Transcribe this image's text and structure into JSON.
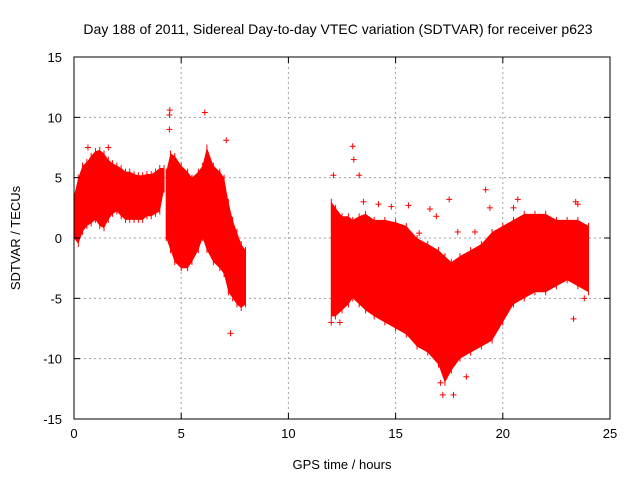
{
  "chart_data": {
    "type": "scatter",
    "title": "Day 188 of 2011, Sidereal Day-to-day VTEC variation (SDTVAR) for receiver p623",
    "xlabel": "GPS time / hours",
    "ylabel": "SDTVAR / TECUs",
    "xlim": [
      0,
      25
    ],
    "ylim": [
      -15,
      15
    ],
    "xticks": [
      0,
      5,
      10,
      15,
      20,
      25
    ],
    "xtick_labels": [
      "0",
      "5",
      "10",
      "15",
      "20",
      "25"
    ],
    "yticks": [
      -15,
      -10,
      -5,
      0,
      5,
      10,
      15
    ],
    "ytick_labels": [
      "-15",
      "-10",
      "-5",
      "0",
      "5",
      "10",
      "15"
    ],
    "grid": true,
    "marker": "+",
    "series": [
      {
        "name": "SDTVAR",
        "color": "#ff0000",
        "segments": [
          {
            "x": [
              0.0,
              0.2,
              0.4,
              0.6,
              0.8,
              1.0,
              1.2,
              1.4,
              1.6,
              1.8,
              2.0,
              2.2,
              2.4,
              2.6,
              2.8,
              3.0,
              3.2,
              3.4,
              3.6,
              3.8,
              4.0,
              4.2
            ],
            "high": [
              3.5,
              5.0,
              6.0,
              6.3,
              6.8,
              7.2,
              7.3,
              7.0,
              6.5,
              6.2,
              6.0,
              5.8,
              5.5,
              5.5,
              5.3,
              5.2,
              5.2,
              5.3,
              5.3,
              5.5,
              5.8,
              5.8
            ],
            "low": [
              0.0,
              -0.5,
              0.5,
              1.0,
              1.2,
              1.5,
              1.0,
              0.8,
              1.5,
              2.0,
              2.2,
              1.8,
              1.5,
              1.5,
              1.5,
              1.5,
              1.5,
              1.8,
              1.8,
              2.0,
              2.2,
              4.0
            ]
          },
          {
            "x": [
              4.3,
              4.5,
              4.7,
              5.0,
              5.3,
              5.5,
              5.8,
              6.0,
              6.2,
              6.5,
              6.8,
              7.0,
              7.2,
              7.4,
              7.6,
              7.8,
              8.0
            ],
            "high": [
              5.5,
              7.0,
              6.8,
              6.0,
              5.5,
              5.0,
              5.5,
              6.0,
              7.5,
              6.0,
              5.5,
              5.0,
              3.0,
              1.5,
              0.5,
              -0.5,
              -1.0
            ],
            "low": [
              0.0,
              -1.0,
              -2.0,
              -2.5,
              -2.5,
              -2.0,
              -1.0,
              0.0,
              -1.0,
              -2.0,
              -2.5,
              -3.0,
              -4.5,
              -5.0,
              -5.5,
              -5.8,
              -5.5
            ]
          },
          {
            "x": [
              12.0,
              12.2,
              12.5,
              12.8,
              13.0,
              13.3,
              13.6,
              14.0,
              14.5,
              15.0,
              15.5,
              16.0,
              16.5,
              17.0,
              17.3,
              17.6,
              18.0,
              18.5,
              19.0,
              19.5,
              20.0,
              20.5,
              21.0,
              21.5,
              22.0,
              22.5,
              23.0,
              23.5,
              24.0
            ],
            "high": [
              3.0,
              2.5,
              1.8,
              1.8,
              1.5,
              1.8,
              2.0,
              1.5,
              1.5,
              1.3,
              1.0,
              0.0,
              -0.5,
              -1.0,
              -1.5,
              -2.0,
              -1.5,
              -1.0,
              -0.5,
              0.5,
              1.0,
              1.5,
              2.0,
              2.0,
              2.0,
              1.5,
              1.5,
              1.5,
              1.0
            ],
            "low": [
              -6.5,
              -6.5,
              -6.0,
              -5.5,
              -5.0,
              -5.5,
              -6.0,
              -6.5,
              -7.0,
              -7.5,
              -8.0,
              -9.0,
              -9.5,
              -10.5,
              -12.0,
              -11.0,
              -10.0,
              -9.5,
              -9.0,
              -8.5,
              -7.0,
              -5.5,
              -5.0,
              -4.5,
              -4.5,
              -4.0,
              -3.5,
              -4.0,
              -4.5
            ]
          }
        ],
        "outliers": [
          {
            "x": 0.65,
            "y": 7.5
          },
          {
            "x": 1.6,
            "y": 7.5
          },
          {
            "x": 4.47,
            "y": 10.6
          },
          {
            "x": 4.45,
            "y": 10.2
          },
          {
            "x": 6.1,
            "y": 10.4
          },
          {
            "x": 7.1,
            "y": 8.1
          },
          {
            "x": 7.3,
            "y": -7.9
          },
          {
            "x": 4.45,
            "y": 9.0
          },
          {
            "x": 12.1,
            "y": 5.2
          },
          {
            "x": 12.0,
            "y": -7.0
          },
          {
            "x": 12.4,
            "y": -7.0
          },
          {
            "x": 13.0,
            "y": 7.6
          },
          {
            "x": 13.05,
            "y": 6.5
          },
          {
            "x": 13.3,
            "y": 5.2
          },
          {
            "x": 13.5,
            "y": 3.0
          },
          {
            "x": 14.2,
            "y": 2.8
          },
          {
            "x": 14.8,
            "y": 2.6
          },
          {
            "x": 15.6,
            "y": 2.7
          },
          {
            "x": 16.1,
            "y": 0.4
          },
          {
            "x": 16.6,
            "y": 2.4
          },
          {
            "x": 16.9,
            "y": 1.8
          },
          {
            "x": 17.1,
            "y": -12.0
          },
          {
            "x": 17.2,
            "y": -13.0
          },
          {
            "x": 17.5,
            "y": 3.2
          },
          {
            "x": 17.7,
            "y": -13.0
          },
          {
            "x": 17.9,
            "y": 0.5
          },
          {
            "x": 18.3,
            "y": -11.5
          },
          {
            "x": 18.7,
            "y": 0.5
          },
          {
            "x": 19.2,
            "y": 4.0
          },
          {
            "x": 19.4,
            "y": 2.5
          },
          {
            "x": 20.5,
            "y": 2.5
          },
          {
            "x": 20.7,
            "y": 3.2
          },
          {
            "x": 23.4,
            "y": 3.0
          },
          {
            "x": 23.5,
            "y": 2.8
          },
          {
            "x": 23.3,
            "y": -6.7
          },
          {
            "x": 23.8,
            "y": -5.0
          }
        ]
      }
    ]
  }
}
